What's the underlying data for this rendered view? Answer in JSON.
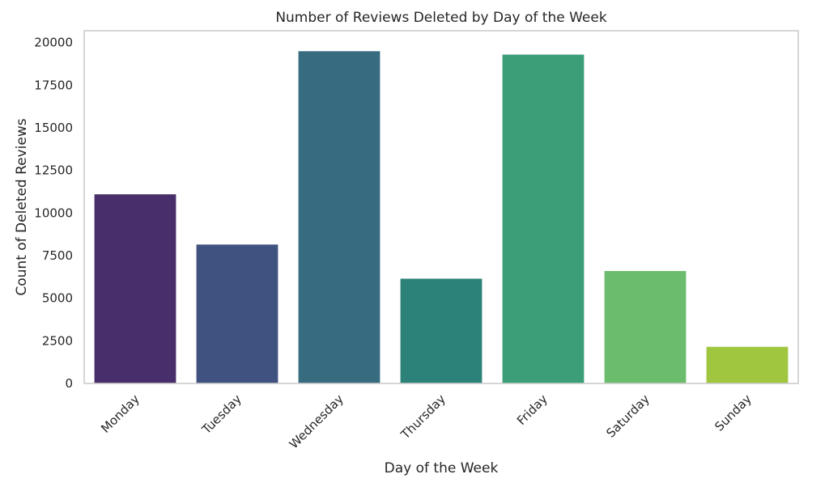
{
  "chart_data": {
    "type": "bar",
    "title": "Number of Reviews Deleted by Day of the Week",
    "xlabel": "Day of the Week",
    "ylabel": "Count of Deleted Reviews",
    "categories": [
      "Monday",
      "Tuesday",
      "Wednesday",
      "Thursday",
      "Friday",
      "Saturday",
      "Sunday"
    ],
    "values": [
      11100,
      8150,
      19500,
      6150,
      19300,
      6600,
      2150
    ],
    "colors": [
      "#482f6b",
      "#40527f",
      "#366b80",
      "#2c8279",
      "#3b9e78",
      "#6bbc6d",
      "#a0c640"
    ],
    "ylim": [
      0,
      20700
    ],
    "yticks": [
      0,
      2500,
      5000,
      7500,
      10000,
      12500,
      15000,
      17500,
      20000
    ],
    "grid": false,
    "legend": "none"
  }
}
